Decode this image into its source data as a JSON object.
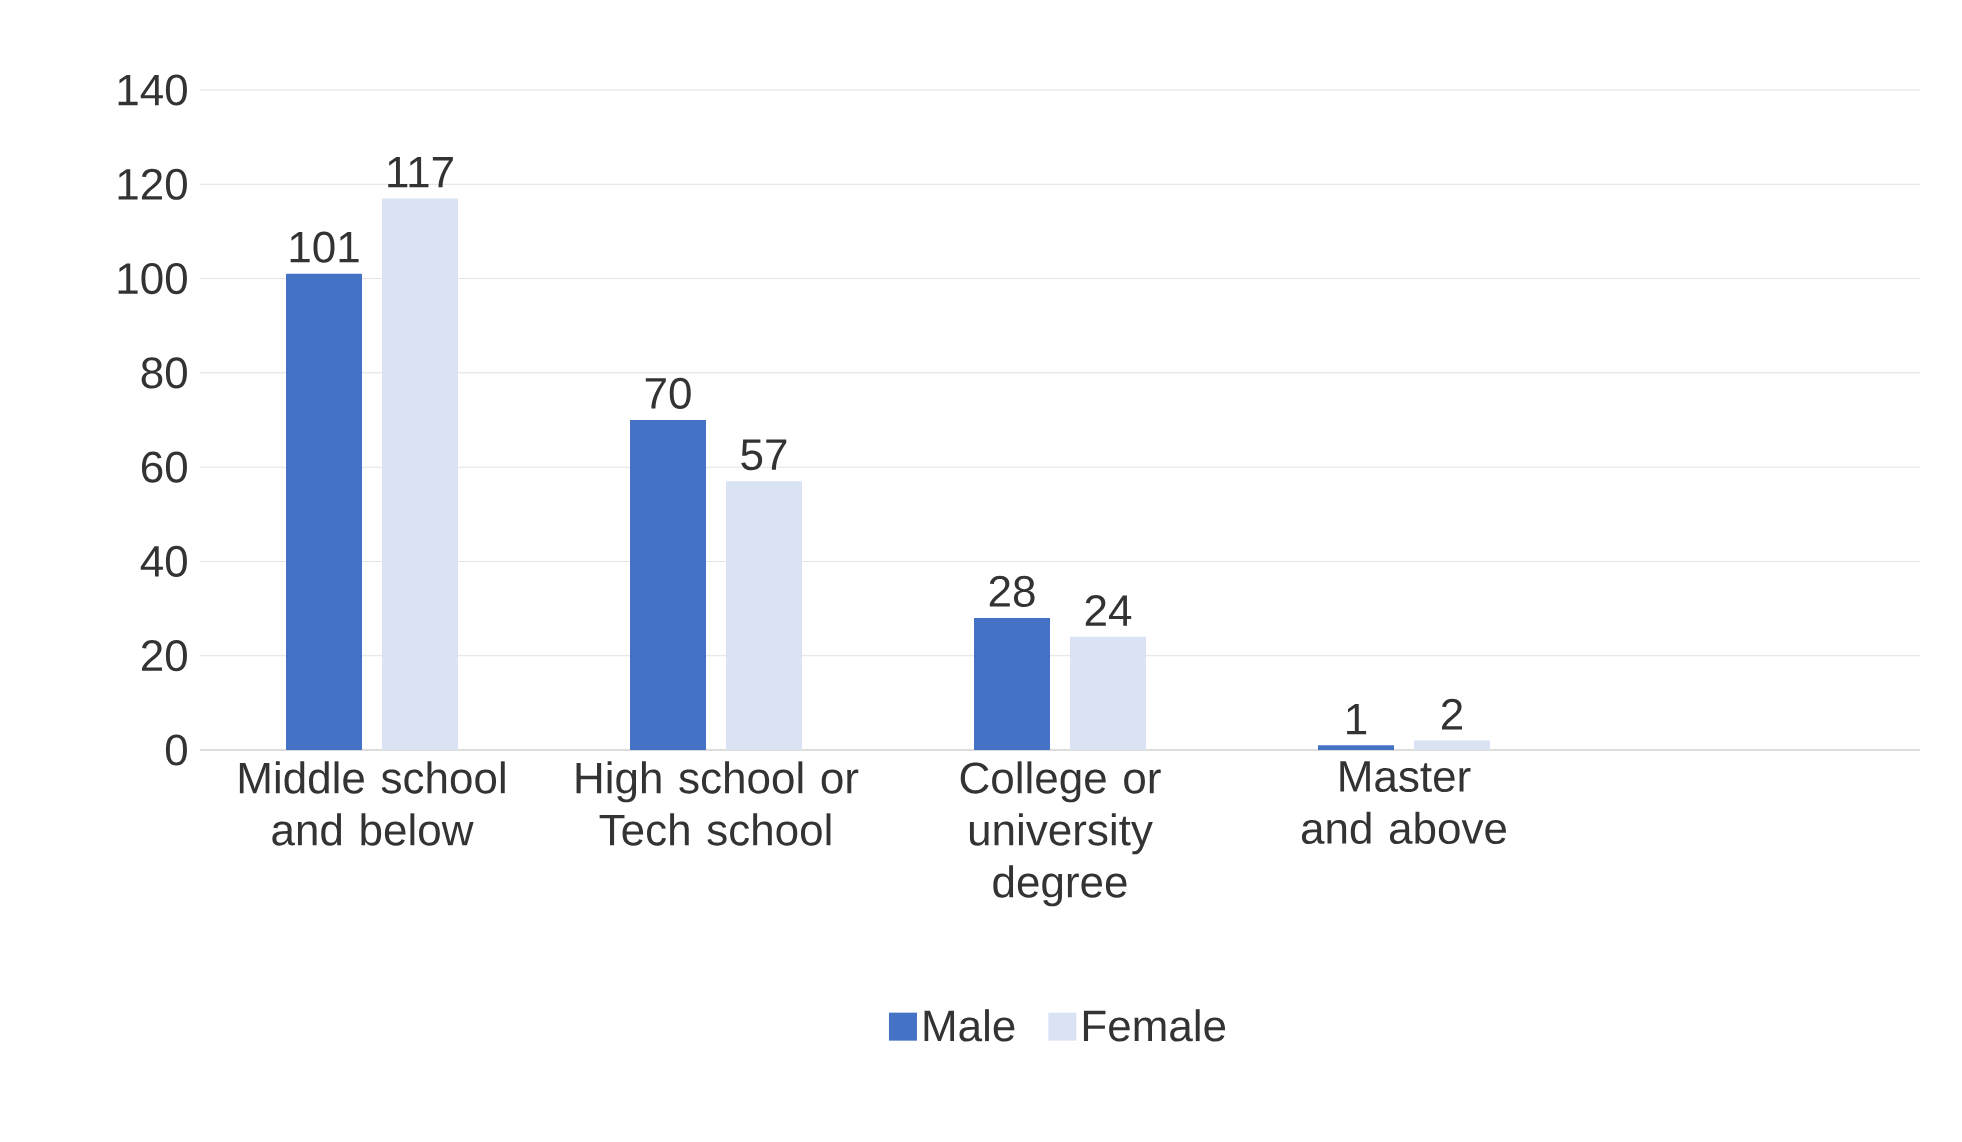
{
  "chart_data": {
    "type": "bar",
    "categories": [
      "Middle school and below",
      "High school or Tech school",
      "College or university degree",
      "Master and above",
      null
    ],
    "series": [
      {
        "name": "Male",
        "color": "#4472c4",
        "values": [
          101,
          70,
          28,
          1,
          null
        ]
      },
      {
        "name": "Female",
        "color": "#dae3f3",
        "values": [
          117,
          57,
          24,
          2,
          null
        ]
      }
    ],
    "ylim": [
      0,
      140
    ],
    "yticks": [
      0,
      20,
      40,
      60,
      80,
      100,
      120,
      140
    ],
    "grid": "y",
    "legend": "bottom",
    "data_labels": true
  }
}
